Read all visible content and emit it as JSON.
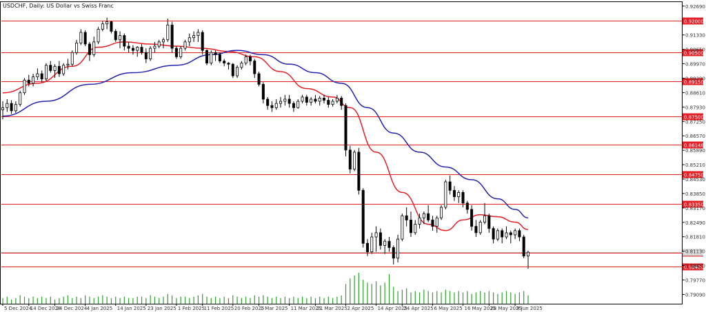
{
  "chart_data": {
    "type": "candlestick",
    "title": "USDCHF, Daily: US Dollar vs Swiss Franc",
    "symbol": "USDCHF",
    "timeframe": "Daily",
    "ylim": [
      0.7865,
      0.9288
    ],
    "y_ticks": [
      "0.92690",
      "0.91330",
      "0.90650",
      "0.89970",
      "0.89290",
      "0.88610",
      "0.87930",
      "0.87250",
      "0.86570",
      "0.85890",
      "0.85210",
      "0.84530",
      "0.83850",
      "0.83170",
      "0.82490",
      "0.81810",
      "0.81130",
      "0.80450",
      "0.79770",
      "0.79090"
    ],
    "x_ticks": [
      {
        "i": 0,
        "label": "5 Dec 2024"
      },
      {
        "i": 6,
        "label": "14 Dec 2024"
      },
      {
        "i": 12,
        "label": "24 Dec 2024"
      },
      {
        "i": 19,
        "label": "4 Jan 2025"
      },
      {
        "i": 26,
        "label": "14 Jan 2025"
      },
      {
        "i": 33,
        "label": "23 Jan 2025"
      },
      {
        "i": 40,
        "label": "1 Feb 2025"
      },
      {
        "i": 46,
        "label": "11 Feb 2025"
      },
      {
        "i": 53,
        "label": "20 Feb 2025"
      },
      {
        "i": 59,
        "label": "1 Mar 2025"
      },
      {
        "i": 66,
        "label": "11 Mar 2025"
      },
      {
        "i": 72,
        "label": "21 Mar 2025"
      },
      {
        "i": 79,
        "label": "2 Apr 2025"
      },
      {
        "i": 86,
        "label": "14 Apr 2025"
      },
      {
        "i": 92,
        "label": "24 Apr 2025"
      },
      {
        "i": 99,
        "label": "6 May 2025"
      },
      {
        "i": 106,
        "label": "16 May 2025"
      },
      {
        "i": 112,
        "label": "28 May 2025"
      },
      {
        "i": 118,
        "label": "9 Jun 2025"
      }
    ],
    "levels": [
      {
        "value": 0.92,
        "label": "0.92000"
      },
      {
        "value": 0.905,
        "label": "0.90500"
      },
      {
        "value": 0.8915,
        "label": "0.89150"
      },
      {
        "value": 0.875,
        "label": "0.87500"
      },
      {
        "value": 0.86146,
        "label": "0.86146"
      },
      {
        "value": 0.8475,
        "label": "0.84750"
      },
      {
        "value": 0.8335,
        "label": "0.83350"
      },
      {
        "value": 0.8105,
        "label": "0.81050"
      },
      {
        "value": 0.804,
        "label": "0.80400"
      }
    ],
    "current_price": {
      "value": 0.8108,
      "label": "0.81080"
    },
    "ohlc": [
      [
        0.878,
        0.882,
        0.8735,
        0.879
      ],
      [
        0.879,
        0.883,
        0.877,
        0.881
      ],
      [
        0.881,
        0.8825,
        0.876,
        0.8775
      ],
      [
        0.8775,
        0.882,
        0.8765,
        0.8805
      ],
      [
        0.8805,
        0.887,
        0.8795,
        0.886
      ],
      [
        0.886,
        0.893,
        0.885,
        0.892
      ],
      [
        0.892,
        0.8945,
        0.889,
        0.8905
      ],
      [
        0.8905,
        0.895,
        0.889,
        0.8935
      ],
      [
        0.8935,
        0.8975,
        0.892,
        0.895
      ],
      [
        0.895,
        0.8965,
        0.891,
        0.8925
      ],
      [
        0.8925,
        0.9,
        0.8915,
        0.899
      ],
      [
        0.899,
        0.901,
        0.8955,
        0.8965
      ],
      [
        0.8965,
        0.8995,
        0.893,
        0.8985
      ],
      [
        0.8985,
        0.901,
        0.8935,
        0.895
      ],
      [
        0.895,
        0.9,
        0.894,
        0.899
      ],
      [
        0.899,
        0.902,
        0.897,
        0.8995
      ],
      [
        0.8995,
        0.906,
        0.8985,
        0.905
      ],
      [
        0.905,
        0.911,
        0.904,
        0.9095
      ],
      [
        0.9095,
        0.916,
        0.9085,
        0.9145
      ],
      [
        0.9145,
        0.9155,
        0.908,
        0.909
      ],
      [
        0.909,
        0.91,
        0.901,
        0.904
      ],
      [
        0.904,
        0.9125,
        0.903,
        0.91
      ],
      [
        0.91,
        0.917,
        0.909,
        0.916
      ],
      [
        0.916,
        0.92,
        0.915,
        0.9185
      ],
      [
        0.9185,
        0.9215,
        0.916,
        0.9195
      ],
      [
        0.9195,
        0.92,
        0.914,
        0.915
      ],
      [
        0.915,
        0.916,
        0.91,
        0.911
      ],
      [
        0.911,
        0.915,
        0.907,
        0.913
      ],
      [
        0.913,
        0.914,
        0.906,
        0.908
      ],
      [
        0.908,
        0.91,
        0.905,
        0.907
      ],
      [
        0.907,
        0.9085,
        0.904,
        0.906
      ],
      [
        0.906,
        0.908,
        0.903,
        0.9075
      ],
      [
        0.9075,
        0.909,
        0.904,
        0.905
      ],
      [
        0.905,
        0.907,
        0.9,
        0.902
      ],
      [
        0.902,
        0.908,
        0.901,
        0.907
      ],
      [
        0.907,
        0.91,
        0.905,
        0.908
      ],
      [
        0.908,
        0.911,
        0.907,
        0.91
      ],
      [
        0.91,
        0.912,
        0.907,
        0.911
      ],
      [
        0.911,
        0.921,
        0.91,
        0.918
      ],
      [
        0.918,
        0.9195,
        0.905,
        0.907
      ],
      [
        0.907,
        0.908,
        0.902,
        0.903
      ],
      [
        0.903,
        0.908,
        0.902,
        0.907
      ],
      [
        0.907,
        0.911,
        0.906,
        0.91
      ],
      [
        0.91,
        0.914,
        0.908,
        0.912
      ],
      [
        0.912,
        0.915,
        0.91,
        0.913
      ],
      [
        0.913,
        0.916,
        0.91,
        0.9145
      ],
      [
        0.9145,
        0.9155,
        0.904,
        0.906
      ],
      [
        0.906,
        0.9065,
        0.899,
        0.9
      ],
      [
        0.9,
        0.906,
        0.899,
        0.905
      ],
      [
        0.905,
        0.906,
        0.901,
        0.904
      ],
      [
        0.904,
        0.905,
        0.9,
        0.901
      ],
      [
        0.901,
        0.902,
        0.8985,
        0.9
      ],
      [
        0.9,
        0.9005,
        0.897,
        0.8995
      ],
      [
        0.8995,
        0.9,
        0.893,
        0.894
      ],
      [
        0.894,
        0.899,
        0.893,
        0.898
      ],
      [
        0.898,
        0.901,
        0.897,
        0.9
      ],
      [
        0.9,
        0.904,
        0.899,
        0.903
      ],
      [
        0.903,
        0.904,
        0.899,
        0.901
      ],
      [
        0.901,
        0.902,
        0.893,
        0.895
      ],
      [
        0.895,
        0.896,
        0.889,
        0.89
      ],
      [
        0.89,
        0.891,
        0.881,
        0.883
      ],
      [
        0.883,
        0.884,
        0.878,
        0.88
      ],
      [
        0.88,
        0.882,
        0.877,
        0.879
      ],
      [
        0.879,
        0.883,
        0.878,
        0.881
      ],
      [
        0.881,
        0.884,
        0.879,
        0.882
      ],
      [
        0.882,
        0.885,
        0.88,
        0.883
      ],
      [
        0.883,
        0.885,
        0.879,
        0.881
      ],
      [
        0.881,
        0.882,
        0.877,
        0.879
      ],
      [
        0.879,
        0.883,
        0.8785,
        0.882
      ],
      [
        0.882,
        0.885,
        0.881,
        0.884
      ],
      [
        0.884,
        0.885,
        0.88,
        0.8815
      ],
      [
        0.8815,
        0.884,
        0.88,
        0.883
      ],
      [
        0.883,
        0.885,
        0.881,
        0.882
      ],
      [
        0.882,
        0.8845,
        0.88,
        0.8835
      ],
      [
        0.8835,
        0.885,
        0.881,
        0.8825
      ],
      [
        0.8825,
        0.884,
        0.879,
        0.8805
      ],
      [
        0.8805,
        0.883,
        0.8795,
        0.882
      ],
      [
        0.882,
        0.885,
        0.881,
        0.8835
      ],
      [
        0.8835,
        0.8845,
        0.878,
        0.88
      ],
      [
        0.88,
        0.881,
        0.856,
        0.859
      ],
      [
        0.859,
        0.861,
        0.848,
        0.85
      ],
      [
        0.85,
        0.859,
        0.849,
        0.858
      ],
      [
        0.858,
        0.86,
        0.838,
        0.84
      ],
      [
        0.84,
        0.841,
        0.813,
        0.815
      ],
      [
        0.815,
        0.817,
        0.809,
        0.811
      ],
      [
        0.811,
        0.82,
        0.81,
        0.818
      ],
      [
        0.818,
        0.823,
        0.811,
        0.82
      ],
      [
        0.82,
        0.822,
        0.812,
        0.814
      ],
      [
        0.814,
        0.817,
        0.81,
        0.816
      ],
      [
        0.816,
        0.818,
        0.811,
        0.813
      ],
      [
        0.813,
        0.814,
        0.805,
        0.808
      ],
      [
        0.808,
        0.819,
        0.806,
        0.817
      ],
      [
        0.817,
        0.829,
        0.816,
        0.828
      ],
      [
        0.828,
        0.832,
        0.823,
        0.826
      ],
      [
        0.826,
        0.83,
        0.818,
        0.82
      ],
      [
        0.82,
        0.826,
        0.819,
        0.824
      ],
      [
        0.824,
        0.829,
        0.822,
        0.827
      ],
      [
        0.827,
        0.83,
        0.824,
        0.829
      ],
      [
        0.829,
        0.833,
        0.825,
        0.826
      ],
      [
        0.826,
        0.828,
        0.821,
        0.823
      ],
      [
        0.823,
        0.828,
        0.82,
        0.827
      ],
      [
        0.827,
        0.833,
        0.826,
        0.832
      ],
      [
        0.832,
        0.845,
        0.831,
        0.844
      ],
      [
        0.844,
        0.847,
        0.838,
        0.84
      ],
      [
        0.84,
        0.842,
        0.835,
        0.837
      ],
      [
        0.837,
        0.84,
        0.834,
        0.839
      ],
      [
        0.839,
        0.84,
        0.832,
        0.834
      ],
      [
        0.834,
        0.835,
        0.829,
        0.831
      ],
      [
        0.831,
        0.833,
        0.821,
        0.823
      ],
      [
        0.823,
        0.826,
        0.818,
        0.82
      ],
      [
        0.82,
        0.826,
        0.819,
        0.825
      ],
      [
        0.825,
        0.834,
        0.824,
        0.828
      ],
      [
        0.828,
        0.829,
        0.82,
        0.822
      ],
      [
        0.822,
        0.823,
        0.815,
        0.817
      ],
      [
        0.817,
        0.822,
        0.816,
        0.821
      ],
      [
        0.821,
        0.822,
        0.815,
        0.818
      ],
      [
        0.818,
        0.823,
        0.817,
        0.82
      ],
      [
        0.82,
        0.821,
        0.815,
        0.819
      ],
      [
        0.819,
        0.822,
        0.817,
        0.821
      ],
      [
        0.821,
        0.822,
        0.816,
        0.818
      ],
      [
        0.818,
        0.819,
        0.808,
        0.809
      ],
      [
        0.809,
        0.8115,
        0.803,
        0.8108
      ]
    ],
    "series": [
      {
        "name": "MA red",
        "color": "#e31e24",
        "points": [
          [
            0,
            0.886
          ],
          [
            8,
            0.8905
          ],
          [
            16,
            0.8985
          ],
          [
            22,
            0.9075
          ],
          [
            28,
            0.91
          ],
          [
            34,
            0.909
          ],
          [
            40,
            0.908
          ],
          [
            46,
            0.907
          ],
          [
            52,
            0.9055
          ],
          [
            58,
            0.903
          ],
          [
            64,
            0.896
          ],
          [
            70,
            0.888
          ],
          [
            76,
            0.884
          ],
          [
            80,
            0.879
          ],
          [
            86,
            0.858
          ],
          [
            92,
            0.839
          ],
          [
            98,
            0.824
          ],
          [
            102,
            0.821
          ],
          [
            106,
            0.826
          ],
          [
            110,
            0.8285
          ],
          [
            114,
            0.8275
          ],
          [
            118,
            0.825
          ],
          [
            121,
            0.8215
          ]
        ]
      },
      {
        "name": "MA blue",
        "color": "#2222aa",
        "points": [
          [
            0,
            0.875
          ],
          [
            10,
            0.882
          ],
          [
            20,
            0.89
          ],
          [
            30,
            0.8955
          ],
          [
            40,
            0.899
          ],
          [
            48,
            0.904
          ],
          [
            54,
            0.906
          ],
          [
            60,
            0.904
          ],
          [
            66,
            0.8995
          ],
          [
            72,
            0.8955
          ],
          [
            78,
            0.8905
          ],
          [
            84,
            0.879
          ],
          [
            90,
            0.867
          ],
          [
            96,
            0.858
          ],
          [
            102,
            0.851
          ],
          [
            108,
            0.845
          ],
          [
            114,
            0.836
          ],
          [
            118,
            0.831
          ],
          [
            121,
            0.827
          ]
        ]
      }
    ],
    "volume": [
      4,
      5,
      3,
      4,
      6,
      5,
      4,
      5,
      4,
      5,
      4,
      5,
      3,
      4,
      5,
      6,
      4,
      5,
      4,
      6,
      5,
      4,
      5,
      6,
      5,
      4,
      5,
      4,
      5,
      4,
      4,
      5,
      5,
      4,
      6,
      5,
      4,
      5,
      7,
      6,
      4,
      5,
      5,
      4,
      5,
      6,
      7,
      5,
      4,
      5,
      4,
      5,
      4,
      6,
      5,
      4,
      5,
      4,
      6,
      5,
      6,
      5,
      4,
      5,
      4,
      5,
      4,
      5,
      4,
      5,
      4,
      5,
      4,
      5,
      4,
      5,
      4,
      5,
      6,
      14,
      18,
      20,
      22,
      17,
      15,
      14,
      16,
      13,
      15,
      21,
      12,
      9,
      10,
      11,
      8,
      9,
      8,
      10,
      9,
      8,
      9,
      8,
      10,
      9,
      8,
      9,
      8,
      9,
      7,
      8,
      9,
      8,
      9,
      8,
      7,
      8,
      9,
      8,
      7,
      8,
      9,
      6
    ],
    "colors": {
      "candle": "#000000",
      "level": "#e31e24",
      "level_label_bg": "#e31e24",
      "current_price_line": "#c0c0c0",
      "volume": "#2e9e2e"
    }
  }
}
